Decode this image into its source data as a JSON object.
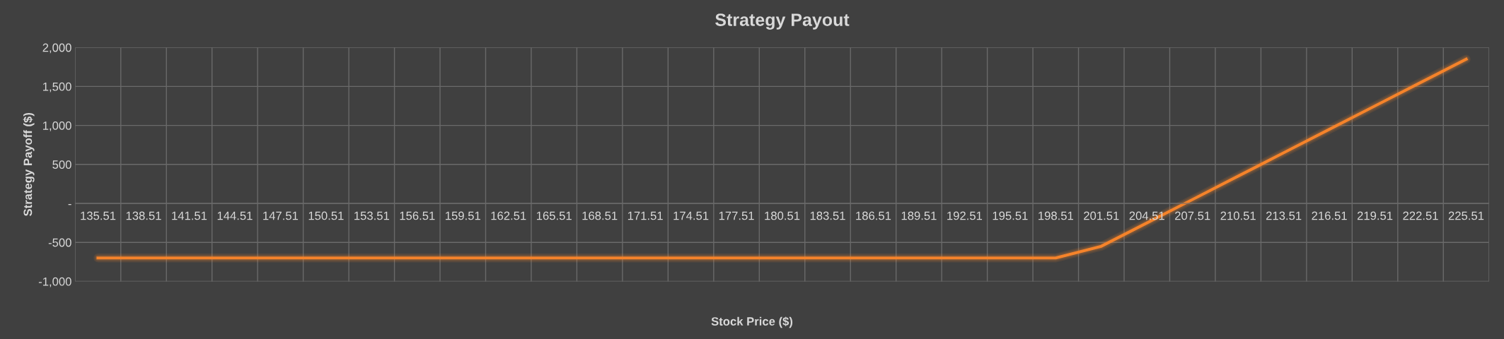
{
  "chart_data": {
    "type": "line",
    "title": "Strategy Payout",
    "xlabel": "Stock Price ($)",
    "ylabel": "Strategy Payoff ($)",
    "categories": [
      "135.51",
      "138.51",
      "141.51",
      "144.51",
      "147.51",
      "150.51",
      "153.51",
      "156.51",
      "159.51",
      "162.51",
      "165.51",
      "168.51",
      "171.51",
      "174.51",
      "177.51",
      "180.51",
      "183.51",
      "186.51",
      "189.51",
      "192.51",
      "195.51",
      "198.51",
      "201.51",
      "204.51",
      "207.51",
      "210.51",
      "213.51",
      "216.51",
      "219.51",
      "222.51",
      "225.51"
    ],
    "series": [
      {
        "color": "#f5832a",
        "values": [
          -700,
          -700,
          -700,
          -700,
          -700,
          -700,
          -700,
          -700,
          -700,
          -700,
          -700,
          -700,
          -700,
          -700,
          -700,
          -700,
          -700,
          -700,
          -700,
          -700,
          -700,
          -700,
          -550,
          -250,
          50,
          350,
          650,
          950,
          1250,
          1550,
          1850
        ]
      }
    ],
    "ylim": [
      -1000,
      2000
    ],
    "yticks": [
      {
        "value": -1000,
        "label": "-1,000"
      },
      {
        "value": -500,
        "label": "-500"
      },
      {
        "value": 0,
        "label": "-"
      },
      {
        "value": 500,
        "label": "500"
      },
      {
        "value": 1000,
        "label": "1,000"
      },
      {
        "value": 1500,
        "label": "1,500"
      },
      {
        "value": 2000,
        "label": "2,000"
      }
    ],
    "grid": true,
    "marker": "none",
    "line_style": "solid"
  }
}
